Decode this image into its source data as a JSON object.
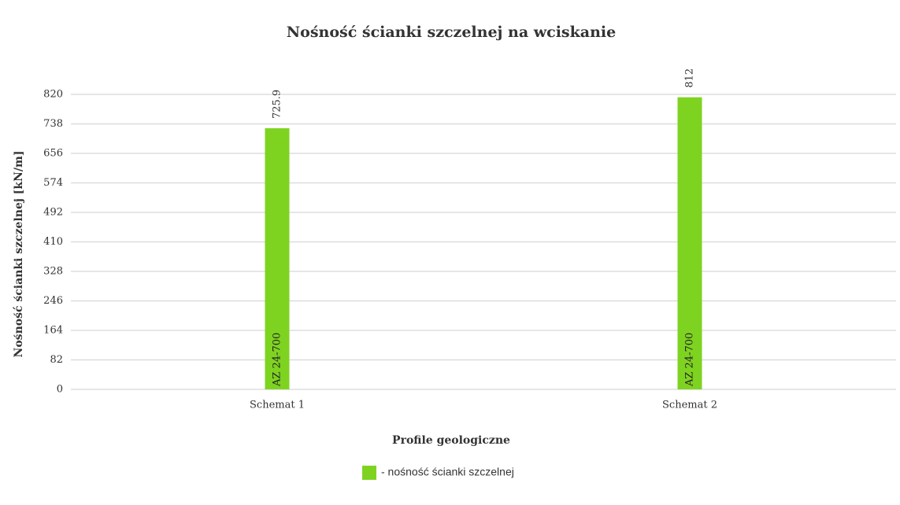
{
  "chart_data": {
    "type": "bar",
    "title": "Nośność ścianki szczelnej na wciskanie",
    "x_label": "Profile geologiczne",
    "y_label": "Nośność ścianki szczelnej [kN/m]",
    "categories": [
      "Schemat 1",
      "Schemat 2"
    ],
    "series": [
      {
        "name": "- nośność ścianki szczelnej",
        "color": "#7ed321",
        "values": [
          725.9,
          812
        ],
        "bar_labels": [
          "AZ 24-700",
          "AZ 24-700"
        ]
      }
    ],
    "ylim": [
      0,
      820
    ],
    "yticks": [
      0,
      82,
      164,
      246,
      328,
      410,
      492,
      574,
      656,
      738,
      820
    ],
    "grid": true,
    "legend": "bottom"
  }
}
